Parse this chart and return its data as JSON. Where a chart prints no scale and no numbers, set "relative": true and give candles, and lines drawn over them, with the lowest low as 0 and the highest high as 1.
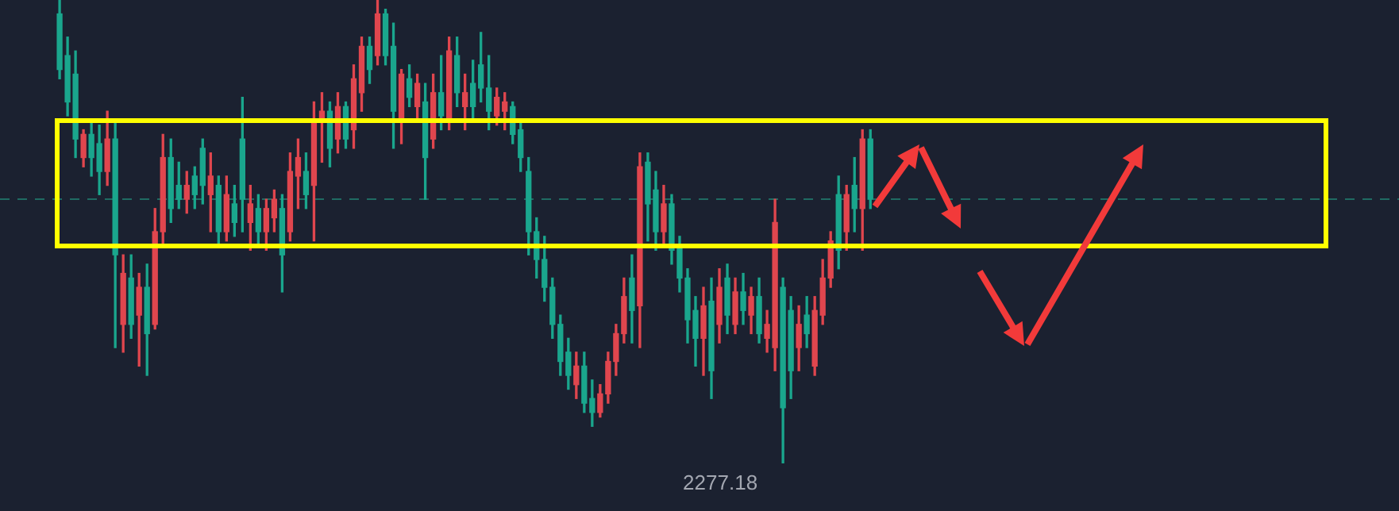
{
  "chart_data": {
    "type": "candlestick",
    "relative": true,
    "categories": [
      null,
      null,
      null,
      null,
      null,
      null,
      null,
      null,
      null,
      null,
      null,
      null,
      null,
      null,
      null,
      null,
      null,
      null,
      null,
      null,
      null,
      null,
      null,
      null,
      null,
      null,
      null,
      null,
      null,
      null,
      null,
      null,
      null,
      null,
      null,
      null,
      null,
      null,
      null,
      null,
      null,
      null,
      null,
      null,
      null,
      null,
      null,
      null,
      null,
      null,
      null,
      null,
      null,
      null,
      null,
      null,
      null,
      null,
      null,
      null,
      null,
      null,
      null,
      null,
      null,
      null,
      null,
      null,
      null,
      null,
      null,
      null,
      null,
      null,
      null,
      null,
      null,
      null,
      null,
      null,
      null,
      null,
      null,
      null,
      null,
      null,
      null,
      null,
      null,
      null,
      null,
      null,
      null,
      null,
      null,
      null,
      null,
      null,
      null,
      null,
      null,
      null,
      null,
      null,
      null,
      null,
      null,
      null,
      null,
      null,
      null,
      null,
      null,
      null,
      null,
      null,
      null,
      null,
      null,
      null,
      null,
      null,
      null,
      null,
      null,
      null,
      null,
      null,
      null,
      null,
      null,
      null,
      null,
      null,
      null,
      null,
      null,
      null,
      null,
      null,
      null,
      null,
      null,
      null,
      null,
      null,
      null,
      null,
      null,
      null,
      null,
      null,
      null,
      null,
      null,
      null,
      null,
      null,
      null,
      null,
      null,
      null,
      null,
      null,
      null,
      null,
      null,
      null,
      null,
      null,
      null,
      null,
      null,
      null,
      null,
      null
    ],
    "ohlc": [
      null,
      null,
      null,
      null,
      null,
      null,
      null,
      [
        0.97,
        1.0,
        0.83,
        0.85
      ],
      [
        0.88,
        0.92,
        0.75,
        0.78
      ],
      [
        0.84,
        0.89,
        0.66,
        0.7
      ],
      [
        0.66,
        0.72,
        0.64,
        0.71
      ],
      [
        0.71,
        0.74,
        0.62,
        0.66
      ],
      [
        0.69,
        0.73,
        0.58,
        0.63
      ],
      [
        0.63,
        0.76,
        0.6,
        0.7
      ],
      [
        0.7,
        0.74,
        0.25,
        0.45
      ],
      [
        0.3,
        0.45,
        0.24,
        0.41
      ],
      [
        0.4,
        0.45,
        0.27,
        0.3
      ],
      [
        0.32,
        0.41,
        0.21,
        0.38
      ],
      [
        0.38,
        0.43,
        0.19,
        0.28
      ],
      [
        0.3,
        0.55,
        0.29,
        0.5
      ],
      [
        0.5,
        0.71,
        0.47,
        0.66
      ],
      [
        0.66,
        0.7,
        0.52,
        0.55
      ],
      [
        0.6,
        0.65,
        0.55,
        0.57
      ],
      [
        0.57,
        0.63,
        0.54,
        0.6
      ],
      [
        0.62,
        0.64,
        0.55,
        0.58
      ],
      [
        0.68,
        0.7,
        0.56,
        0.6
      ],
      [
        0.58,
        0.67,
        0.5,
        0.62
      ],
      [
        0.6,
        0.62,
        0.47,
        0.5
      ],
      [
        0.5,
        0.62,
        0.48,
        0.58
      ],
      [
        0.56,
        0.6,
        0.49,
        0.52
      ],
      [
        0.7,
        0.79,
        0.5,
        0.57
      ],
      [
        0.52,
        0.6,
        0.46,
        0.56
      ],
      [
        0.55,
        0.58,
        0.47,
        0.5
      ],
      [
        0.5,
        0.57,
        0.46,
        0.55
      ],
      [
        0.53,
        0.59,
        0.5,
        0.57
      ],
      [
        0.55,
        0.58,
        0.37,
        0.45
      ],
      [
        0.5,
        0.67,
        0.48,
        0.63
      ],
      [
        0.62,
        0.7,
        0.55,
        0.66
      ],
      [
        0.63,
        0.67,
        0.55,
        0.58
      ],
      [
        0.6,
        0.78,
        0.48,
        0.74
      ],
      [
        0.74,
        0.8,
        0.65,
        0.76
      ],
      [
        0.76,
        0.78,
        0.64,
        0.68
      ],
      [
        0.7,
        0.8,
        0.67,
        0.77
      ],
      [
        0.77,
        0.78,
        0.68,
        0.7
      ],
      [
        0.72,
        0.86,
        0.68,
        0.83
      ],
      [
        0.8,
        0.92,
        0.76,
        0.9
      ],
      [
        0.9,
        0.92,
        0.82,
        0.85
      ],
      [
        0.88,
        1.0,
        0.86,
        0.97
      ],
      [
        0.97,
        0.98,
        0.86,
        0.88
      ],
      [
        0.9,
        0.95,
        0.68,
        0.76
      ],
      [
        0.74,
        0.85,
        0.69,
        0.84
      ],
      [
        0.83,
        0.86,
        0.77,
        0.79
      ],
      [
        0.77,
        0.84,
        0.74,
        0.82
      ],
      [
        0.78,
        0.82,
        0.57,
        0.66
      ],
      [
        0.7,
        0.84,
        0.68,
        0.8
      ],
      [
        0.8,
        0.88,
        0.72,
        0.75
      ],
      [
        0.74,
        0.92,
        0.72,
        0.89
      ],
      [
        0.88,
        0.92,
        0.77,
        0.8
      ],
      [
        0.77,
        0.84,
        0.72,
        0.8
      ],
      [
        0.82,
        0.87,
        0.74,
        0.77
      ],
      [
        0.86,
        0.93,
        0.78,
        0.81
      ],
      [
        0.81,
        0.88,
        0.72,
        0.76
      ],
      [
        0.75,
        0.81,
        0.73,
        0.79
      ],
      [
        0.76,
        0.8,
        0.72,
        0.78
      ],
      [
        0.77,
        0.78,
        0.69,
        0.71
      ],
      [
        0.72,
        0.74,
        0.63,
        0.66
      ],
      [
        0.63,
        0.66,
        0.45,
        0.5
      ],
      [
        0.5,
        0.53,
        0.4,
        0.44
      ],
      [
        0.44,
        0.49,
        0.35,
        0.38
      ],
      [
        0.38,
        0.4,
        0.27,
        0.3
      ],
      [
        0.3,
        0.32,
        0.19,
        0.22
      ],
      [
        0.24,
        0.27,
        0.16,
        0.19
      ],
      [
        0.17,
        0.24,
        0.14,
        0.21
      ],
      [
        0.21,
        0.24,
        0.11,
        0.13
      ],
      [
        0.14,
        0.18,
        0.08,
        0.11
      ],
      [
        0.11,
        0.17,
        0.1,
        0.15
      ],
      [
        0.15,
        0.24,
        0.13,
        0.22
      ],
      [
        0.22,
        0.3,
        0.19,
        0.28
      ],
      [
        0.28,
        0.4,
        0.26,
        0.36
      ],
      [
        0.4,
        0.45,
        0.26,
        0.33
      ],
      [
        0.34,
        0.67,
        0.25,
        0.64
      ],
      [
        0.65,
        0.67,
        0.48,
        0.56
      ],
      [
        0.59,
        0.63,
        0.46,
        0.5
      ],
      [
        0.5,
        0.6,
        0.47,
        0.56
      ],
      [
        0.56,
        0.58,
        0.43,
        0.46
      ],
      [
        0.47,
        0.49,
        0.37,
        0.4
      ],
      [
        0.4,
        0.42,
        0.26,
        0.31
      ],
      [
        0.33,
        0.36,
        0.21,
        0.27
      ],
      [
        0.27,
        0.38,
        0.19,
        0.34
      ],
      [
        0.35,
        0.4,
        0.14,
        0.2
      ],
      [
        0.3,
        0.42,
        0.26,
        0.38
      ],
      [
        0.4,
        0.43,
        0.28,
        0.32
      ],
      [
        0.3,
        0.4,
        0.28,
        0.37
      ],
      [
        0.37,
        0.41,
        0.3,
        0.33
      ],
      [
        0.32,
        0.38,
        0.28,
        0.36
      ],
      [
        0.36,
        0.4,
        0.26,
        0.28
      ],
      [
        0.27,
        0.33,
        0.24,
        0.3
      ],
      [
        0.25,
        0.57,
        0.2,
        0.52
      ],
      [
        0.38,
        0.4,
        0.0,
        0.12
      ],
      [
        0.33,
        0.36,
        0.14,
        0.2
      ],
      [
        0.25,
        0.34,
        0.2,
        0.3
      ],
      [
        0.32,
        0.36,
        0.25,
        0.28
      ],
      [
        0.21,
        0.36,
        0.19,
        0.33
      ],
      [
        0.32,
        0.44,
        0.3,
        0.4
      ],
      [
        0.4,
        0.5,
        0.38,
        0.48
      ],
      [
        0.58,
        0.62,
        0.42,
        0.46
      ],
      [
        0.5,
        0.6,
        0.46,
        0.58
      ],
      [
        0.6,
        0.66,
        0.5,
        0.55
      ],
      [
        0.55,
        0.72,
        0.46,
        0.7
      ],
      [
        0.7,
        0.72,
        0.55,
        0.57
      ],
      null,
      null,
      null,
      null,
      null,
      null,
      null,
      null,
      null,
      null,
      null,
      null,
      null,
      null,
      null,
      null,
      null,
      null,
      null,
      null,
      null,
      null,
      null,
      null,
      null,
      null,
      null,
      null,
      null,
      null,
      null,
      null,
      null,
      null,
      null,
      null,
      null,
      null,
      null,
      null,
      null,
      null,
      null,
      null,
      null,
      null,
      null,
      null,
      null,
      null,
      null,
      null,
      null,
      null,
      null,
      null,
      null,
      null,
      null,
      null,
      null,
      null,
      null,
      null,
      null,
      null
    ],
    "colors": [
      null,
      null,
      null,
      null,
      null,
      null,
      null,
      "#1aa68d",
      "#1aa68d",
      "#1aa68d",
      "#e0464e",
      "#1aa68d",
      "#1aa68d",
      "#e0464e",
      "#1aa68d",
      "#e0464e",
      "#1aa68d",
      "#e0464e",
      "#1aa68d",
      "#e0464e",
      "#e0464e",
      "#1aa68d",
      "#1aa68d",
      "#e0464e",
      "#1aa68d",
      "#1aa68d",
      "#e0464e",
      "#1aa68d",
      "#e0464e",
      "#1aa68d",
      "#1aa68d",
      "#e0464e",
      "#1aa68d",
      "#e0464e",
      "#e0464e",
      "#1aa68d",
      "#e0464e",
      "#e0464e",
      "#1aa68d",
      "#e0464e",
      "#e0464e",
      "#1aa68d",
      "#e0464e",
      "#1aa68d",
      "#e0464e",
      "#e0464e",
      "#1aa68d",
      "#e0464e",
      "#1aa68d",
      "#1aa68d",
      "#e0464e",
      "#1aa68d",
      "#e0464e",
      "#1aa68d",
      "#e0464e",
      "#1aa68d",
      "#e0464e",
      "#1aa68d",
      "#e0464e",
      "#1aa68d",
      "#1aa68d",
      "#1aa68d",
      "#e0464e",
      "#e0464e",
      "#1aa68d",
      "#1aa68d",
      "#1aa68d",
      "#1aa68d",
      "#1aa68d",
      "#1aa68d",
      "#1aa68d",
      "#1aa68d",
      "#e0464e",
      "#1aa68d",
      "#1aa68d",
      "#e0464e",
      "#e0464e",
      "#e0464e",
      "#e0464e",
      "#1aa68d",
      "#e0464e",
      "#1aa68d",
      "#1aa68d",
      "#e0464e",
      "#1aa68d",
      "#1aa68d",
      "#1aa68d",
      "#1aa68d",
      "#e0464e",
      "#1aa68d",
      "#e0464e",
      "#1aa68d",
      "#e0464e",
      "#1aa68d",
      "#e0464e",
      "#1aa68d",
      "#e0464e",
      "#e0464e",
      "#1aa68d",
      "#1aa68d",
      "#e0464e",
      "#1aa68d",
      "#e0464e",
      "#e0464e",
      "#e0464e",
      "#1aa68d",
      "#e0464e",
      "#1aa68d",
      "#e0464e",
      "#1aa68d",
      null,
      null,
      null,
      null,
      null,
      null,
      null,
      null,
      null,
      null,
      null,
      null,
      null,
      null,
      null,
      null,
      null,
      null,
      null,
      null,
      null,
      null,
      null,
      null,
      null,
      null,
      null,
      null,
      null,
      null,
      null,
      null,
      null,
      null,
      null,
      null,
      null,
      null,
      null,
      null,
      null,
      null,
      null,
      null,
      null,
      null,
      null,
      null,
      null,
      null,
      null,
      null,
      null,
      null,
      null,
      null,
      null,
      null,
      null,
      null,
      null,
      null,
      null,
      null,
      null,
      null
    ],
    "ref_lines": [
      {
        "axis": "y",
        "value": 0.57,
        "color": "#1f6b62",
        "line_style": "dashed"
      }
    ],
    "annotations": [
      "2277.18"
    ]
  }
}
